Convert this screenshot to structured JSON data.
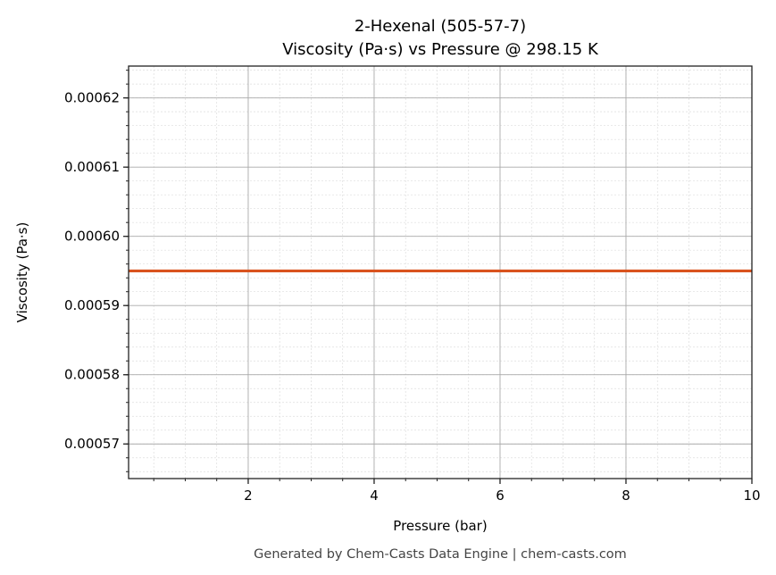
{
  "chart_data": {
    "type": "line",
    "title": "2-Hexenal (505-57-7)",
    "subtitle": "Viscosity (Pa·s) vs Pressure @ 298.15 K",
    "xlabel": "Pressure (bar)",
    "ylabel": "Viscosity (Pa·s)",
    "xlim": [
      0.1,
      10
    ],
    "ylim": [
      0.000565,
      0.0006246
    ],
    "x_ticks": [
      2,
      4,
      6,
      8,
      10
    ],
    "x_tick_labels": [
      "2",
      "4",
      "6",
      "8",
      "10"
    ],
    "y_ticks": [
      0.00057,
      0.00058,
      0.00059,
      0.0006,
      0.00061,
      0.00062
    ],
    "y_tick_labels": [
      "0.00057",
      "0.00058",
      "0.00059",
      "0.00060",
      "0.00061",
      "0.00062"
    ],
    "x_minor_step": 0.5,
    "y_minor_step": 2e-06,
    "grid": true,
    "series": [
      {
        "name": "Viscosity",
        "color": "#d9531e",
        "x": [
          0.1,
          10
        ],
        "y": [
          0.000595,
          0.000595
        ]
      }
    ]
  },
  "footer": "Generated by Chem-Casts Data Engine | chem-casts.com"
}
